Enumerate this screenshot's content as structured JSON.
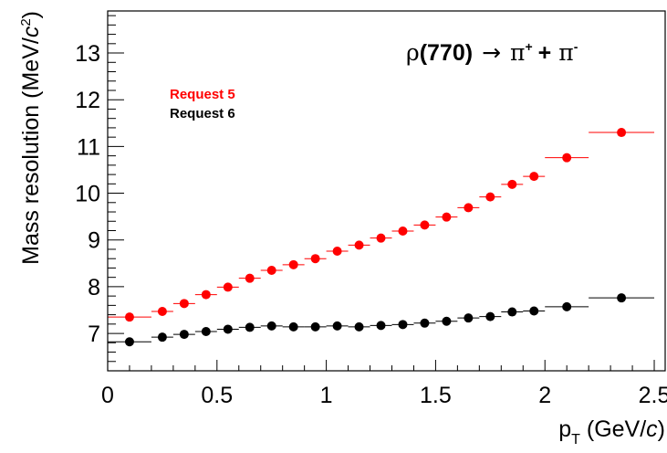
{
  "chart_data": {
    "type": "scatter",
    "title_parts": {
      "rho": "ρ",
      "mass": "(770)",
      "arrow": "→",
      "pi1": "π",
      "sup1": "+",
      "plus": "+",
      "pi2": "π",
      "sup2": "-"
    },
    "xlabel_parts": {
      "main": "p",
      "sub": "T",
      "rest": " (GeV/",
      "italic": "c",
      "close": ")"
    },
    "ylabel_parts": {
      "main": "Mass resolution (MeV/",
      "italic": "c",
      "sup": "2",
      "close": ")"
    },
    "xlim": [
      0,
      2.55
    ],
    "ylim": [
      6.2,
      13.9
    ],
    "xticks": [
      0,
      0.5,
      1,
      1.5,
      2,
      2.5
    ],
    "xtick_labels": [
      "0",
      "0.5",
      "1",
      "1.5",
      "2",
      "2.5"
    ],
    "yticks": [
      7,
      8,
      9,
      10,
      11,
      12,
      13
    ],
    "ytick_labels": [
      "7",
      "8",
      "9",
      "10",
      "11",
      "12",
      "13"
    ],
    "legend_position": "top-left",
    "series": [
      {
        "name": "Request 5",
        "color": "#ff0000",
        "points": [
          {
            "x": 0.1,
            "xlo": 0.0,
            "xhi": 0.2,
            "y": 7.35
          },
          {
            "x": 0.25,
            "xlo": 0.2,
            "xhi": 0.3,
            "y": 7.47
          },
          {
            "x": 0.35,
            "xlo": 0.3,
            "xhi": 0.4,
            "y": 7.64
          },
          {
            "x": 0.45,
            "xlo": 0.4,
            "xhi": 0.5,
            "y": 7.83
          },
          {
            "x": 0.55,
            "xlo": 0.5,
            "xhi": 0.6,
            "y": 7.99
          },
          {
            "x": 0.65,
            "xlo": 0.6,
            "xhi": 0.7,
            "y": 8.18
          },
          {
            "x": 0.75,
            "xlo": 0.7,
            "xhi": 0.8,
            "y": 8.35
          },
          {
            "x": 0.85,
            "xlo": 0.8,
            "xhi": 0.9,
            "y": 8.47
          },
          {
            "x": 0.95,
            "xlo": 0.9,
            "xhi": 1.0,
            "y": 8.6
          },
          {
            "x": 1.05,
            "xlo": 1.0,
            "xhi": 1.1,
            "y": 8.76
          },
          {
            "x": 1.15,
            "xlo": 1.1,
            "xhi": 1.2,
            "y": 8.89
          },
          {
            "x": 1.25,
            "xlo": 1.2,
            "xhi": 1.3,
            "y": 9.04
          },
          {
            "x": 1.35,
            "xlo": 1.3,
            "xhi": 1.4,
            "y": 9.19
          },
          {
            "x": 1.45,
            "xlo": 1.4,
            "xhi": 1.5,
            "y": 9.32
          },
          {
            "x": 1.55,
            "xlo": 1.5,
            "xhi": 1.6,
            "y": 9.49
          },
          {
            "x": 1.65,
            "xlo": 1.6,
            "xhi": 1.7,
            "y": 9.69
          },
          {
            "x": 1.75,
            "xlo": 1.7,
            "xhi": 1.8,
            "y": 9.92
          },
          {
            "x": 1.85,
            "xlo": 1.8,
            "xhi": 1.9,
            "y": 10.19
          },
          {
            "x": 1.95,
            "xlo": 1.9,
            "xhi": 2.0,
            "y": 10.36
          },
          {
            "x": 2.1,
            "xlo": 2.0,
            "xhi": 2.2,
            "y": 10.76
          },
          {
            "x": 2.35,
            "xlo": 2.2,
            "xhi": 2.5,
            "y": 11.3
          }
        ]
      },
      {
        "name": "Request 6",
        "color": "#000000",
        "points": [
          {
            "x": 0.1,
            "xlo": 0.0,
            "xhi": 0.2,
            "y": 6.82
          },
          {
            "x": 0.25,
            "xlo": 0.2,
            "xhi": 0.3,
            "y": 6.92
          },
          {
            "x": 0.35,
            "xlo": 0.3,
            "xhi": 0.4,
            "y": 6.98
          },
          {
            "x": 0.45,
            "xlo": 0.4,
            "xhi": 0.5,
            "y": 7.04
          },
          {
            "x": 0.55,
            "xlo": 0.5,
            "xhi": 0.6,
            "y": 7.09
          },
          {
            "x": 0.65,
            "xlo": 0.6,
            "xhi": 0.7,
            "y": 7.13
          },
          {
            "x": 0.75,
            "xlo": 0.7,
            "xhi": 0.8,
            "y": 7.16
          },
          {
            "x": 0.85,
            "xlo": 0.8,
            "xhi": 0.9,
            "y": 7.14
          },
          {
            "x": 0.95,
            "xlo": 0.9,
            "xhi": 1.0,
            "y": 7.14
          },
          {
            "x": 1.05,
            "xlo": 1.0,
            "xhi": 1.1,
            "y": 7.16
          },
          {
            "x": 1.15,
            "xlo": 1.1,
            "xhi": 1.2,
            "y": 7.14
          },
          {
            "x": 1.25,
            "xlo": 1.2,
            "xhi": 1.3,
            "y": 7.17
          },
          {
            "x": 1.35,
            "xlo": 1.3,
            "xhi": 1.4,
            "y": 7.19
          },
          {
            "x": 1.45,
            "xlo": 1.4,
            "xhi": 1.5,
            "y": 7.22
          },
          {
            "x": 1.55,
            "xlo": 1.5,
            "xhi": 1.6,
            "y": 7.26
          },
          {
            "x": 1.65,
            "xlo": 1.6,
            "xhi": 1.7,
            "y": 7.33
          },
          {
            "x": 1.75,
            "xlo": 1.7,
            "xhi": 1.8,
            "y": 7.36
          },
          {
            "x": 1.85,
            "xlo": 1.8,
            "xhi": 1.9,
            "y": 7.46
          },
          {
            "x": 1.95,
            "xlo": 1.9,
            "xhi": 2.0,
            "y": 7.48
          },
          {
            "x": 2.1,
            "xlo": 2.0,
            "xhi": 2.2,
            "y": 7.57
          },
          {
            "x": 2.35,
            "xlo": 2.2,
            "xhi": 2.5,
            "y": 7.76
          }
        ]
      }
    ]
  }
}
